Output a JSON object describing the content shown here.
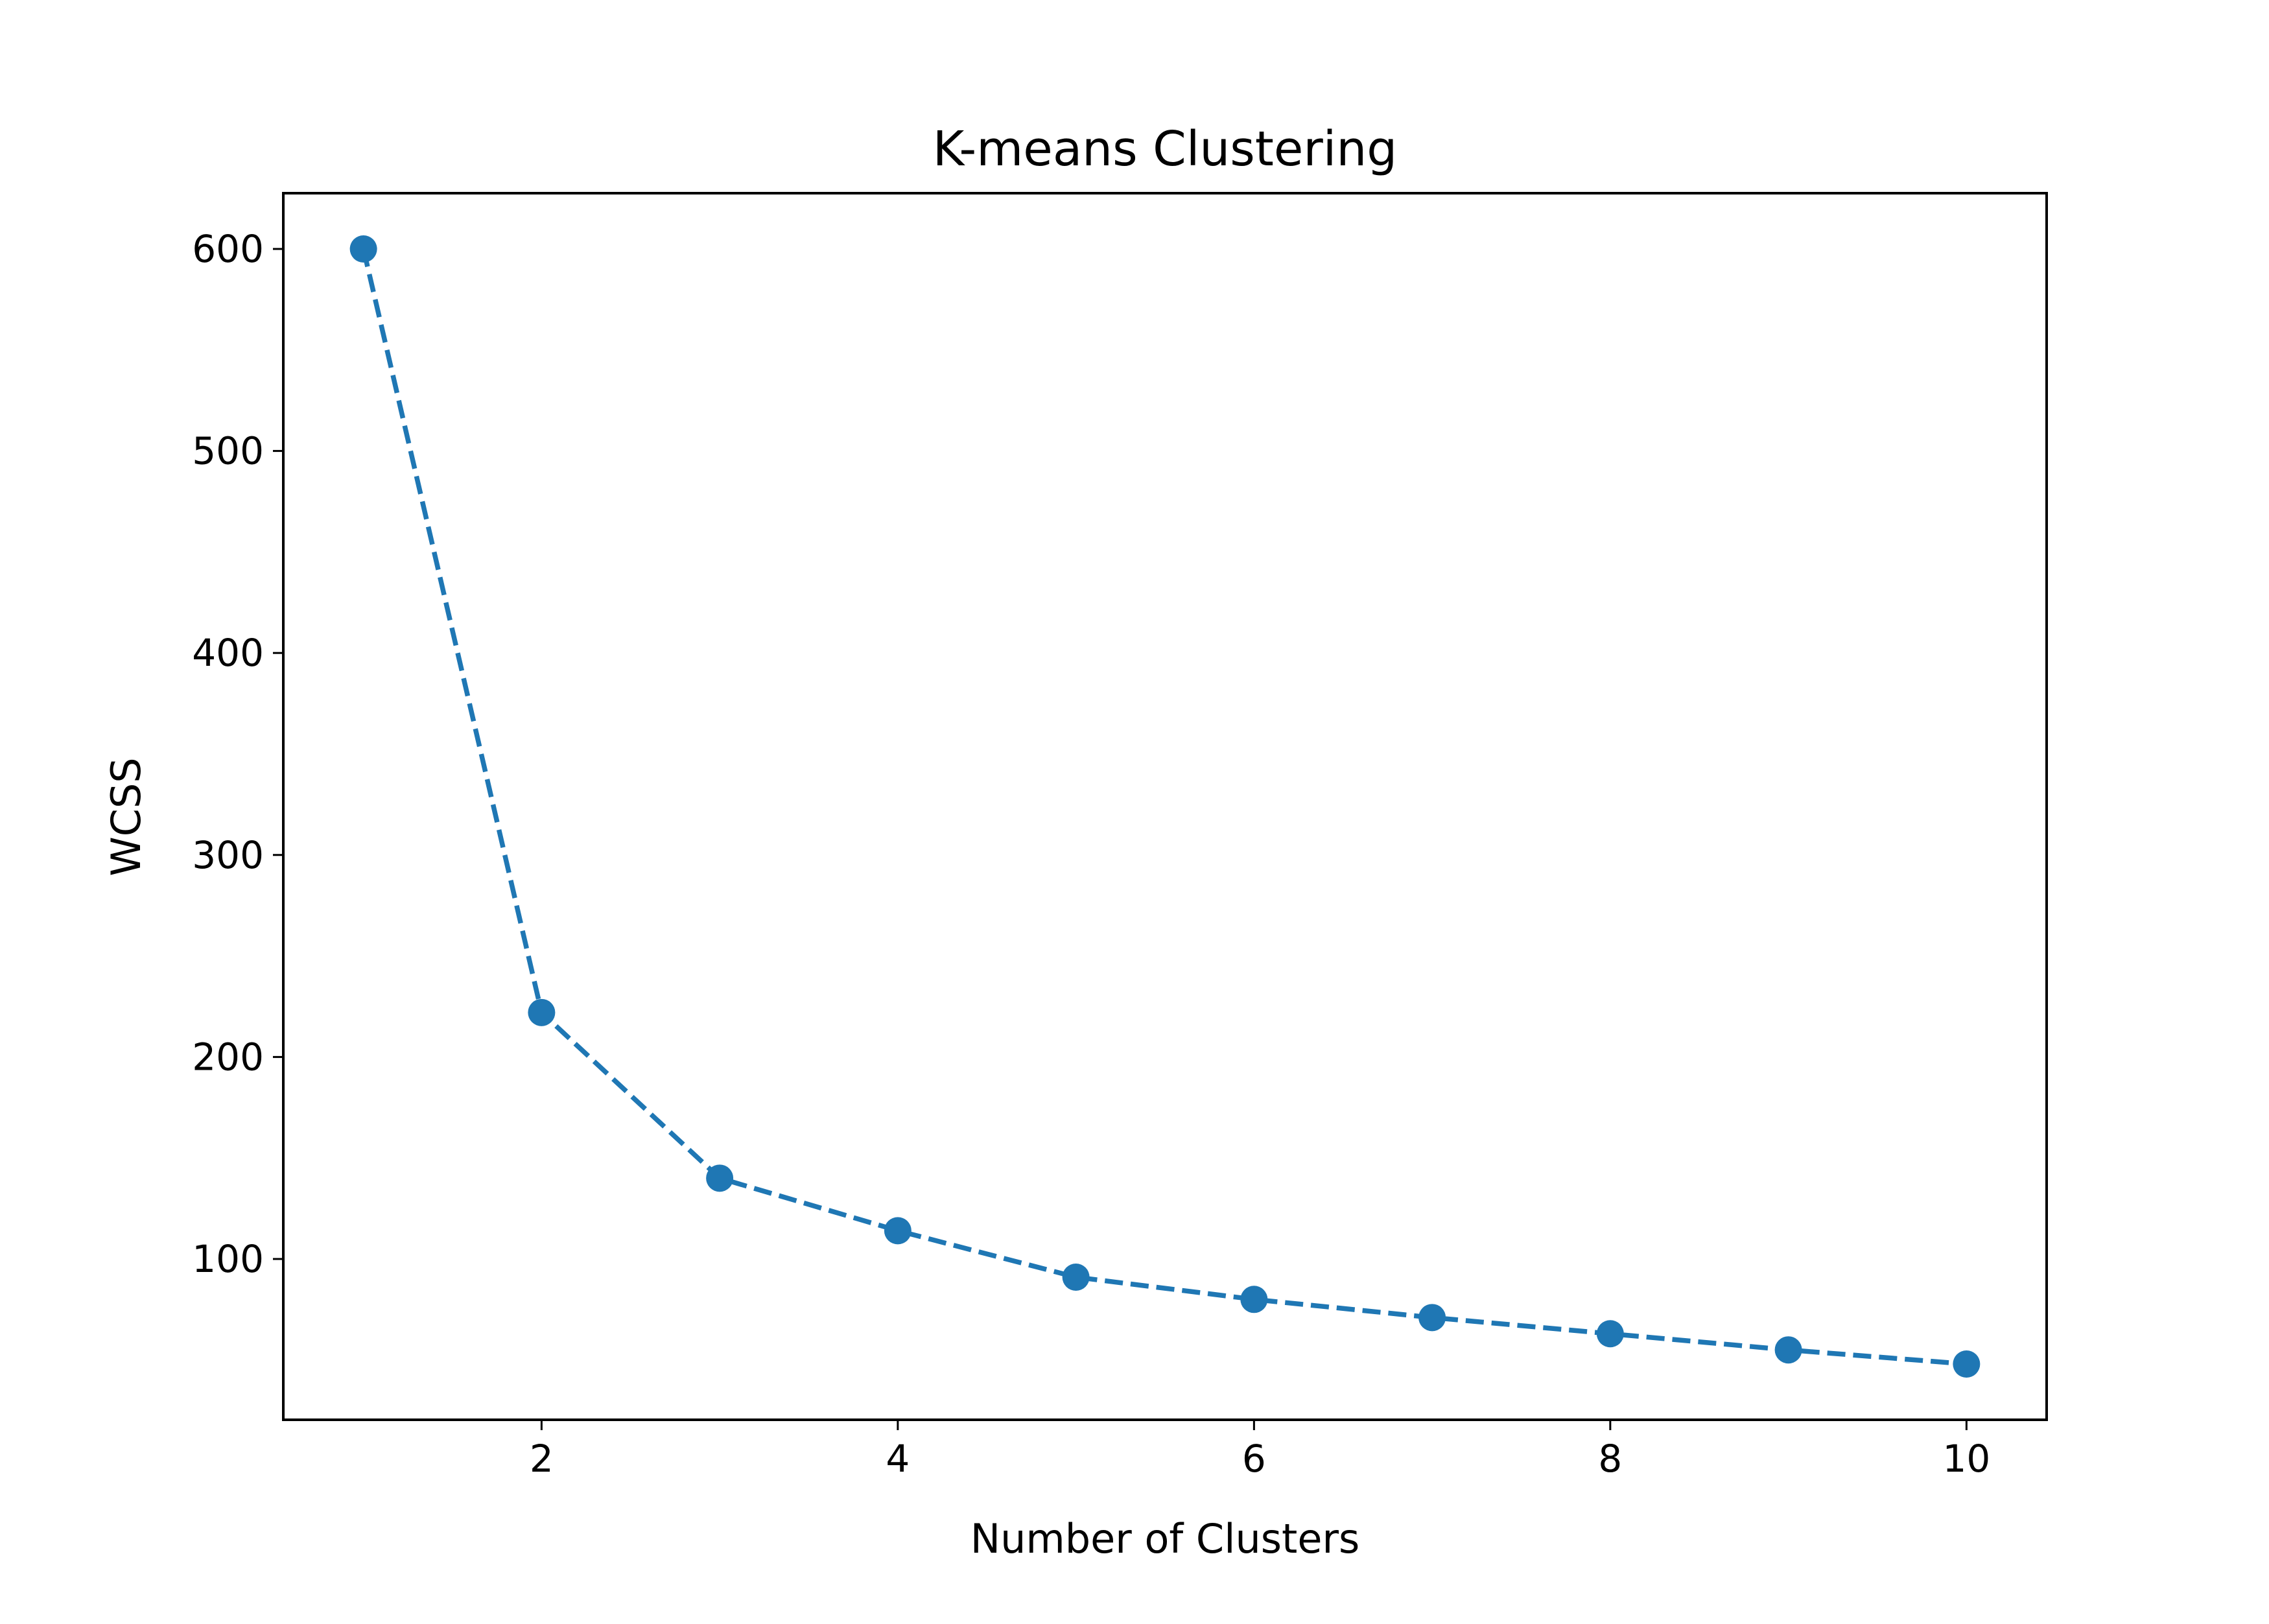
{
  "chart_data": {
    "type": "line",
    "title": "K-means Clustering",
    "xlabel": "Number of Clusters",
    "ylabel": "WCSS",
    "x": [
      1,
      2,
      3,
      4,
      5,
      6,
      7,
      8,
      9,
      10
    ],
    "series": [
      {
        "values": [
          600,
          222,
          140,
          114,
          91,
          80,
          71,
          63,
          55,
          48
        ],
        "color": "#1f77b4",
        "line_style": "dashed",
        "marker": "circle"
      }
    ],
    "xlim": [
      0.55,
      10.45
    ],
    "ylim": [
      20.4,
      627.6
    ],
    "xticks": [
      2,
      4,
      6,
      8,
      10
    ],
    "yticks": [
      100,
      200,
      300,
      400,
      500,
      600
    ],
    "grid": false,
    "legend": "none"
  }
}
